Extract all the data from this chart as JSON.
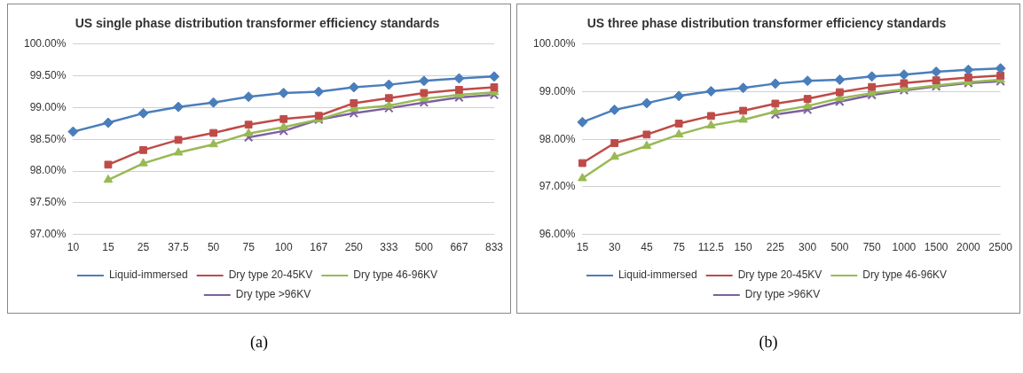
{
  "chart_data": [
    {
      "type": "line",
      "title": "US single phase distribution transformer efficiency standards",
      "categories": [
        "10",
        "15",
        "25",
        "37.5",
        "50",
        "75",
        "100",
        "167",
        "250",
        "333",
        "500",
        "667",
        "833"
      ],
      "series": [
        {
          "name": "Liquid-immersed",
          "color": "#4a7ebb",
          "marker": "diamond",
          "values": [
            98.62,
            98.76,
            98.91,
            99.01,
            99.08,
            99.17,
            99.23,
            99.25,
            99.32,
            99.36,
            99.42,
            99.46,
            99.49
          ]
        },
        {
          "name": "Dry type 20-45KV",
          "color": "#be4b48",
          "marker": "square",
          "values": [
            null,
            98.1,
            98.33,
            98.49,
            98.6,
            98.73,
            98.82,
            98.87,
            99.07,
            99.15,
            99.23,
            99.28,
            99.32
          ]
        },
        {
          "name": "Dry type 46-96KV",
          "color": "#98b954",
          "marker": "triangle",
          "values": [
            null,
            97.86,
            98.12,
            98.29,
            98.42,
            98.59,
            98.69,
            98.81,
            98.98,
            99.03,
            99.14,
            99.2,
            99.24
          ]
        },
        {
          "name": "Dry type >96KV",
          "color": "#7d60a0",
          "marker": "cross",
          "values": [
            null,
            null,
            null,
            null,
            null,
            98.53,
            98.63,
            98.81,
            98.91,
            98.99,
            99.08,
            99.16,
            99.2
          ]
        }
      ],
      "ylim": [
        97,
        100
      ],
      "yticks": [
        {
          "value": 97,
          "label": "97.00%"
        },
        {
          "value": 97.5,
          "label": "97.50%"
        },
        {
          "value": 98,
          "label": "98.00%"
        },
        {
          "value": 98.5,
          "label": "98.50%"
        },
        {
          "value": 99,
          "label": "99.00%"
        },
        {
          "value": 99.5,
          "label": "99.50%"
        },
        {
          "value": 100,
          "label": "100.00%"
        }
      ],
      "grid": "y",
      "legend": "bottom",
      "line_style": "solid",
      "annotations": [
        "(a)"
      ]
    },
    {
      "type": "line",
      "title": "US three phase distribution transformer efficiency standards",
      "categories": [
        "15",
        "30",
        "45",
        "75",
        "112.5",
        "150",
        "225",
        "300",
        "500",
        "750",
        "1000",
        "1500",
        "2000",
        "2500"
      ],
      "series": [
        {
          "name": "Liquid-immersed",
          "color": "#4a7ebb",
          "marker": "diamond",
          "values": [
            98.36,
            98.62,
            98.76,
            98.91,
            99.01,
            99.08,
            99.17,
            99.23,
            99.25,
            99.32,
            99.36,
            99.42,
            99.46,
            99.49
          ]
        },
        {
          "name": "Dry type 20-45KV",
          "color": "#be4b48",
          "marker": "square",
          "values": [
            97.5,
            97.92,
            98.1,
            98.33,
            98.49,
            98.6,
            98.75,
            98.85,
            98.99,
            99.1,
            99.18,
            99.24,
            99.3,
            99.34
          ]
        },
        {
          "name": "Dry type 46-96KV",
          "color": "#98b954",
          "marker": "triangle",
          "values": [
            97.18,
            97.63,
            97.86,
            98.1,
            98.29,
            98.41,
            98.58,
            98.7,
            98.86,
            98.97,
            99.05,
            99.13,
            99.2,
            99.25
          ]
        },
        {
          "name": "Dry type >96KV",
          "color": "#7d60a0",
          "marker": "cross",
          "values": [
            null,
            null,
            null,
            null,
            null,
            null,
            98.52,
            98.62,
            98.79,
            98.93,
            99.03,
            99.11,
            99.18,
            99.22
          ]
        }
      ],
      "ylim": [
        96,
        100
      ],
      "yticks": [
        {
          "value": 96,
          "label": "96.00%"
        },
        {
          "value": 97,
          "label": "97.00%"
        },
        {
          "value": 98,
          "label": "98.00%"
        },
        {
          "value": 99,
          "label": "99.00%"
        },
        {
          "value": 100,
          "label": "100.00%"
        }
      ],
      "grid": "y",
      "legend": "bottom",
      "line_style": "solid",
      "annotations": [
        "(b)"
      ]
    }
  ]
}
